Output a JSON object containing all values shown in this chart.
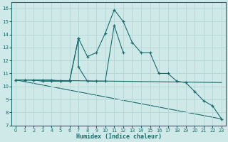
{
  "xlabel": "Humidex (Indice chaleur)",
  "background_color": "#cfe8e8",
  "grid_color": "#b8d8d8",
  "line_color": "#1a6b6b",
  "xlim": [
    -0.5,
    23.5
  ],
  "ylim": [
    7,
    16.5
  ],
  "xticks": [
    0,
    1,
    2,
    3,
    4,
    5,
    6,
    7,
    8,
    9,
    10,
    11,
    12,
    13,
    14,
    15,
    16,
    17,
    18,
    19,
    20,
    21,
    22,
    23
  ],
  "yticks": [
    7,
    8,
    9,
    10,
    11,
    12,
    13,
    14,
    15,
    16
  ],
  "line1_x": [
    0,
    1,
    2,
    3,
    4,
    5,
    6,
    7,
    8,
    9,
    10,
    11,
    12,
    13,
    14,
    15,
    16,
    17,
    18,
    19,
    20,
    21,
    22,
    23
  ],
  "line1_y": [
    10.5,
    10.5,
    10.5,
    10.5,
    10.5,
    10.4,
    10.4,
    13.7,
    12.3,
    12.6,
    14.1,
    15.9,
    15.0,
    13.4,
    12.6,
    12.6,
    11.0,
    11.0,
    10.4,
    10.3,
    9.6,
    8.9,
    8.5,
    7.5
  ],
  "line2_x": [
    0,
    1,
    2,
    3,
    4,
    5,
    6,
    7,
    7,
    8,
    9,
    10,
    11,
    12
  ],
  "line2_y": [
    10.5,
    10.5,
    10.5,
    10.4,
    10.4,
    10.4,
    10.4,
    13.7,
    11.5,
    10.4,
    10.4,
    10.4,
    14.7,
    12.6
  ],
  "line3_x": [
    0,
    23
  ],
  "line3_y": [
    10.5,
    10.3
  ],
  "line4_x": [
    0,
    23
  ],
  "line4_y": [
    10.5,
    7.5
  ]
}
